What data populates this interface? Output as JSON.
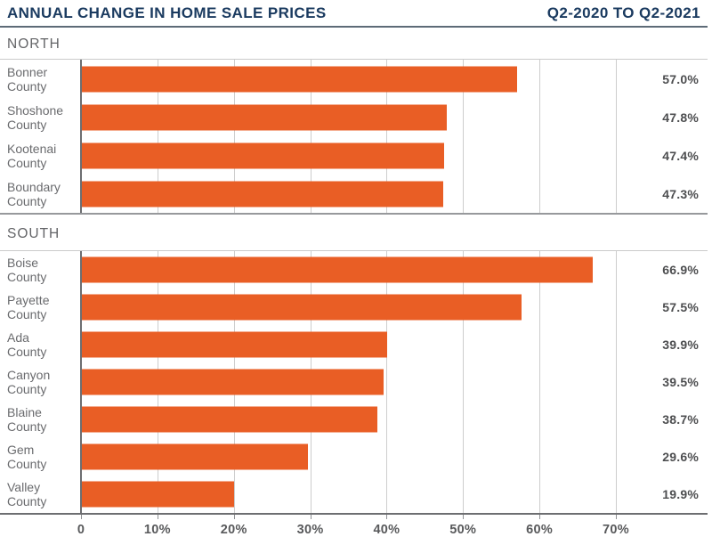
{
  "header": {
    "title": "ANNUAL CHANGE IN HOME SALE PRICES",
    "period": "Q2-2020 TO Q2-2021"
  },
  "colors": {
    "bar_orange": "#E95E25",
    "title_navy": "#1B3B60",
    "label_gray": "#6A6B6E",
    "value_gray": "#4D4E50",
    "grid_light": "#CDCDCD",
    "axis_dark": "#6D6E71"
  },
  "chart_data": {
    "type": "bar",
    "orientation": "horizontal",
    "title": "ANNUAL CHANGE IN HOME SALE PRICES",
    "subtitle": "Q2-2020 TO Q2-2021",
    "unit": "%",
    "xlim": [
      0,
      82
    ],
    "grid": true,
    "legend": "none",
    "value_labels_position": "right",
    "bar_color": "#E95E25",
    "ticks": [
      {
        "value": 0,
        "label": "0"
      },
      {
        "value": 10,
        "label": "10%"
      },
      {
        "value": 20,
        "label": "20%"
      },
      {
        "value": 30,
        "label": "30%"
      },
      {
        "value": 40,
        "label": "40%"
      },
      {
        "value": 50,
        "label": "50%"
      },
      {
        "value": 60,
        "label": "60%"
      },
      {
        "value": 70,
        "label": "70%"
      }
    ],
    "sections": [
      {
        "label": "NORTH",
        "rows": [
          {
            "category": "Bonner County",
            "label_lines": [
              "Bonner",
              "County"
            ],
            "value": 57.0,
            "value_label": "57.0%"
          },
          {
            "category": "Shoshone County",
            "label_lines": [
              "Shoshone",
              "County"
            ],
            "value": 47.8,
            "value_label": "47.8%"
          },
          {
            "category": "Kootenai County",
            "label_lines": [
              "Kootenai",
              "County"
            ],
            "value": 47.4,
            "value_label": "47.4%"
          },
          {
            "category": "Boundary County",
            "label_lines": [
              "Boundary",
              "County"
            ],
            "value": 47.3,
            "value_label": "47.3%"
          }
        ]
      },
      {
        "label": "SOUTH",
        "rows": [
          {
            "category": "Boise County",
            "label_lines": [
              "Boise",
              "County"
            ],
            "value": 66.9,
            "value_label": "66.9%"
          },
          {
            "category": "Payette County",
            "label_lines": [
              "Payette",
              "County"
            ],
            "value": 57.5,
            "value_label": "57.5%"
          },
          {
            "category": "Ada County",
            "label_lines": [
              "Ada",
              "County"
            ],
            "value": 39.9,
            "value_label": "39.9%"
          },
          {
            "category": "Canyon County",
            "label_lines": [
              "Canyon",
              "County"
            ],
            "value": 39.5,
            "value_label": "39.5%"
          },
          {
            "category": "Blaine County",
            "label_lines": [
              "Blaine",
              "County"
            ],
            "value": 38.7,
            "value_label": "38.7%"
          },
          {
            "category": "Gem County",
            "label_lines": [
              "Gem",
              "County"
            ],
            "value": 29.6,
            "value_label": "29.6%"
          },
          {
            "category": "Valley County",
            "label_lines": [
              "Valley",
              "County"
            ],
            "value": 19.9,
            "value_label": "19.9%"
          }
        ]
      }
    ]
  }
}
